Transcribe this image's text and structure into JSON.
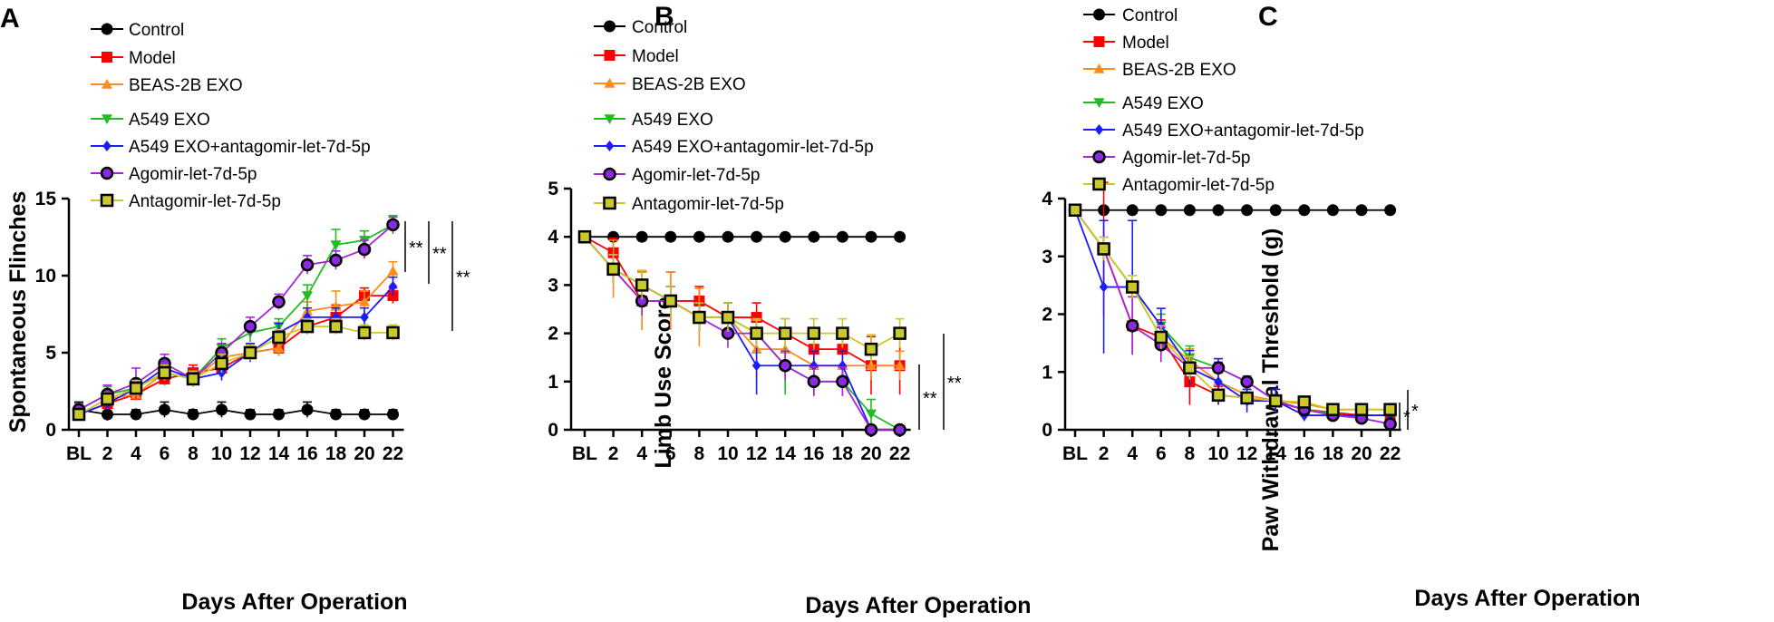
{
  "figure": {
    "panels": [
      "A",
      "B",
      "C"
    ]
  },
  "series_styles": [
    {
      "name": "Control",
      "color": "#000000",
      "marker": "circle",
      "fill": "#000000"
    },
    {
      "name": "Model",
      "color": "#ff0000",
      "marker": "square",
      "fill": "#ff0000"
    },
    {
      "name": "BEAS-2B EXO",
      "color": "#ff8c1a",
      "marker": "triangle-up",
      "fill": "#ff8c1a"
    },
    {
      "name": "A549 EXO",
      "color": "#22bb22",
      "marker": "triangle-down",
      "fill": "#22bb22"
    },
    {
      "name": "A549 EXO+antagomir-let-7d-5p",
      "color": "#1c1cff",
      "marker": "diamond",
      "fill": "#1c1cff"
    },
    {
      "name": "Agomir-let-7d-5p",
      "color": "#aa22dd",
      "marker": "circle-outline",
      "fill": "#8a2be2"
    },
    {
      "name": "Antagomir-let-7d-5p",
      "color": "#c9c92a",
      "marker": "square-outline",
      "fill": "#c9c92a"
    }
  ],
  "chart_data": [
    {
      "panel": "A",
      "type": "line",
      "title": "",
      "xlabel": "Days After Operation",
      "ylabel": "Spontaneous Flinches",
      "categories": [
        "BL",
        "2",
        "4",
        "6",
        "8",
        "10",
        "12",
        "14",
        "16",
        "18",
        "20",
        "22"
      ],
      "ylim": [
        0,
        15
      ],
      "yticks": [
        0,
        5,
        10,
        15
      ],
      "legend_position": "top",
      "series": [
        {
          "name": "Control",
          "values": [
            1.3,
            1.0,
            1.0,
            1.3,
            1.0,
            1.3,
            1.0,
            1.0,
            1.3,
            1.0,
            1.0,
            1.0
          ],
          "errors": [
            0.5,
            0.4,
            0.3,
            0.5,
            0.3,
            0.5,
            0.3,
            0.3,
            0.5,
            0.3,
            0.3,
            0.3
          ]
        },
        {
          "name": "Model",
          "values": [
            1.0,
            1.7,
            2.3,
            3.3,
            3.7,
            4.0,
            5.0,
            5.3,
            6.7,
            7.3,
            8.7,
            8.7
          ],
          "errors": [
            0.3,
            0.4,
            0.4,
            0.4,
            0.5,
            0.6,
            0.5,
            0.5,
            0.5,
            0.8,
            0.5,
            0.5
          ]
        },
        {
          "name": "BEAS-2B EXO",
          "values": [
            1.0,
            2.0,
            2.3,
            3.7,
            3.3,
            4.7,
            5.0,
            5.3,
            7.7,
            8.0,
            8.3,
            10.3
          ],
          "errors": [
            0.3,
            0.4,
            0.4,
            0.5,
            0.5,
            0.6,
            0.5,
            0.5,
            0.6,
            1.0,
            0.7,
            0.6
          ]
        },
        {
          "name": "A549 EXO",
          "values": [
            1.3,
            2.3,
            2.7,
            3.7,
            3.3,
            5.3,
            6.3,
            6.7,
            8.7,
            12.0,
            12.3,
            13.3
          ],
          "errors": [
            0.4,
            0.5,
            0.5,
            0.5,
            0.5,
            0.6,
            0.6,
            0.5,
            0.7,
            1.0,
            0.6,
            0.6
          ]
        },
        {
          "name": "A549 EXO+antagomir-let-7d-5p",
          "values": [
            1.0,
            1.7,
            2.7,
            4.0,
            3.3,
            3.7,
            5.0,
            6.3,
            7.3,
            7.3,
            7.3,
            9.3
          ],
          "errors": [
            0.3,
            0.4,
            0.5,
            0.5,
            0.4,
            0.5,
            0.6,
            0.6,
            0.6,
            0.6,
            0.6,
            0.6
          ]
        },
        {
          "name": "Agomir-let-7d-5p",
          "values": [
            1.3,
            2.3,
            3.0,
            4.3,
            3.3,
            5.0,
            6.7,
            8.3,
            10.7,
            11.0,
            11.7,
            13.3
          ],
          "errors": [
            0.4,
            0.6,
            1.0,
            0.6,
            0.5,
            0.6,
            0.6,
            0.5,
            0.6,
            0.6,
            0.6,
            0.5
          ]
        },
        {
          "name": "Antagomir-let-7d-5p",
          "values": [
            1.0,
            2.0,
            2.7,
            3.7,
            3.3,
            4.3,
            5.0,
            6.0,
            6.7,
            6.7,
            6.3,
            6.3
          ],
          "errors": [
            0.3,
            0.4,
            0.5,
            0.5,
            0.5,
            0.6,
            0.5,
            0.5,
            0.5,
            0.5,
            0.5,
            0.5
          ]
        }
      ],
      "significance": [
        "**",
        "**",
        "**"
      ]
    },
    {
      "panel": "B",
      "type": "line",
      "title": "",
      "xlabel": "Days After Operation",
      "ylabel": "Limb Use Score",
      "categories": [
        "BL",
        "2",
        "4",
        "6",
        "8",
        "10",
        "12",
        "14",
        "16",
        "18",
        "20",
        "22"
      ],
      "ylim": [
        0,
        5
      ],
      "yticks": [
        0,
        1,
        2,
        3,
        4,
        5
      ],
      "legend_position": "top",
      "series": [
        {
          "name": "Control",
          "values": [
            4,
            4,
            4,
            4,
            4,
            4,
            4,
            4,
            4,
            4,
            4,
            4
          ],
          "errors": [
            0,
            0,
            0,
            0,
            0,
            0,
            0,
            0,
            0,
            0,
            0,
            0
          ]
        },
        {
          "name": "Model",
          "values": [
            4.0,
            3.67,
            2.67,
            2.67,
            2.67,
            2.33,
            2.33,
            2.0,
            1.67,
            1.67,
            1.33,
            1.33
          ],
          "errors": [
            0,
            0.3,
            0.6,
            0.6,
            0.3,
            0.3,
            0.3,
            0.3,
            0.3,
            0.3,
            0.6,
            0.6
          ]
        },
        {
          "name": "BEAS-2B EXO",
          "values": [
            4.0,
            3.33,
            2.67,
            2.67,
            2.33,
            2.33,
            1.67,
            1.67,
            1.33,
            1.33,
            1.33,
            1.33
          ],
          "errors": [
            0,
            0.6,
            0.6,
            0.6,
            0.6,
            0.3,
            0.6,
            0.3,
            0.6,
            0.3,
            0.3,
            0.3
          ]
        },
        {
          "name": "A549 EXO",
          "values": [
            4.0,
            3.33,
            3.0,
            2.67,
            2.33,
            2.33,
            2.0,
            1.33,
            1.0,
            1.0,
            0.33,
            0.0
          ],
          "errors": [
            0,
            0.3,
            0.3,
            0.3,
            0.3,
            0.3,
            0.3,
            0.6,
            0.3,
            0.3,
            0.3,
            0
          ]
        },
        {
          "name": "A549 EXO+antagomir-let-7d-5p",
          "values": [
            4.0,
            3.33,
            3.0,
            2.67,
            2.33,
            2.33,
            1.33,
            1.33,
            1.33,
            1.33,
            0.0,
            0.0
          ],
          "errors": [
            0,
            0.3,
            0.3,
            0.3,
            0.3,
            0.3,
            0.6,
            0.3,
            0.3,
            0.3,
            0,
            0
          ]
        },
        {
          "name": "Agomir-let-7d-5p",
          "values": [
            4.0,
            3.33,
            2.67,
            2.67,
            2.33,
            2.0,
            2.0,
            1.33,
            1.0,
            1.0,
            0.0,
            0.0
          ],
          "errors": [
            0,
            0.3,
            0.3,
            0.3,
            0.3,
            0.3,
            0.3,
            0.3,
            0.3,
            0.3,
            0,
            0
          ]
        },
        {
          "name": "Antagomir-let-7d-5p",
          "values": [
            4.0,
            3.33,
            3.0,
            2.67,
            2.33,
            2.33,
            2.0,
            2.0,
            2.0,
            2.0,
            1.67,
            2.0
          ],
          "errors": [
            0,
            0.3,
            0.3,
            0.3,
            0.3,
            0.3,
            0.3,
            0.3,
            0.3,
            0.3,
            0.3,
            0.3
          ]
        }
      ],
      "significance": [
        "**",
        "**"
      ]
    },
    {
      "panel": "C",
      "type": "line",
      "title": "",
      "xlabel": "Days After Operation",
      "ylabel": "Paw Withdrawal Threshold (g)",
      "categories": [
        "BL",
        "2",
        "4",
        "6",
        "8",
        "10",
        "12",
        "14",
        "16",
        "18",
        "20",
        "22"
      ],
      "ylim": [
        0,
        4
      ],
      "yticks": [
        0,
        1,
        2,
        3,
        4
      ],
      "legend_position": "top",
      "series": [
        {
          "name": "Control",
          "values": [
            3.8,
            3.8,
            3.8,
            3.8,
            3.8,
            3.8,
            3.8,
            3.8,
            3.8,
            3.8,
            3.8,
            3.8
          ],
          "errors": [
            0,
            0,
            0,
            0,
            0,
            0,
            0,
            0,
            0,
            0,
            0,
            0
          ]
        },
        {
          "name": "Model",
          "values": [
            3.8,
            3.13,
            1.8,
            1.6,
            0.83,
            0.6,
            0.55,
            0.48,
            0.35,
            0.3,
            0.25,
            0.25
          ],
          "errors": [
            0,
            1.15,
            0.5,
            0.3,
            0.4,
            0.15,
            0.1,
            0.1,
            0.15,
            0.1,
            0.1,
            0.1
          ]
        },
        {
          "name": "BEAS-2B EXO",
          "values": [
            3.8,
            3.13,
            2.47,
            1.6,
            1.2,
            0.83,
            0.6,
            0.5,
            0.45,
            0.35,
            0.35,
            0.35
          ],
          "errors": [
            0,
            0.2,
            0.2,
            0.2,
            0.2,
            0.15,
            0.1,
            0.1,
            0.1,
            0.1,
            0.1,
            0.1
          ]
        },
        {
          "name": "A549 EXO",
          "values": [
            3.8,
            3.13,
            2.47,
            1.8,
            1.25,
            1.07,
            0.83,
            0.5,
            0.35,
            0.28,
            0.2,
            0.1
          ],
          "errors": [
            0,
            0.2,
            0.2,
            0.2,
            0.2,
            0.1,
            0.1,
            0.1,
            0.1,
            0.1,
            0.1,
            0.05
          ]
        },
        {
          "name": "A549 EXO+antagomir-let-7d-5p",
          "values": [
            3.8,
            2.47,
            2.47,
            1.8,
            1.07,
            0.83,
            0.5,
            0.5,
            0.25,
            0.25,
            0.25,
            0.25
          ],
          "errors": [
            0,
            1.15,
            1.15,
            0.3,
            0.3,
            0.4,
            0.2,
            0.2,
            0.1,
            0.1,
            0.1,
            0.1
          ]
        },
        {
          "name": "Agomir-let-7d-5p",
          "values": [
            3.8,
            3.13,
            1.8,
            1.47,
            1.07,
            1.07,
            0.83,
            0.5,
            0.35,
            0.25,
            0.2,
            0.1
          ],
          "errors": [
            0,
            0.2,
            0.5,
            0.3,
            0.2,
            0.1,
            0.1,
            0.1,
            0.1,
            0.1,
            0.05,
            0.05
          ]
        },
        {
          "name": "Antagomir-let-7d-5p",
          "values": [
            3.8,
            3.13,
            2.47,
            1.6,
            1.07,
            0.6,
            0.55,
            0.5,
            0.48,
            0.35,
            0.35,
            0.35
          ],
          "errors": [
            0,
            0.2,
            0.2,
            0.2,
            0.2,
            0.1,
            0.1,
            0.1,
            0.1,
            0.1,
            0.1,
            0.1
          ]
        }
      ],
      "significance": [
        "*",
        "*"
      ]
    }
  ]
}
